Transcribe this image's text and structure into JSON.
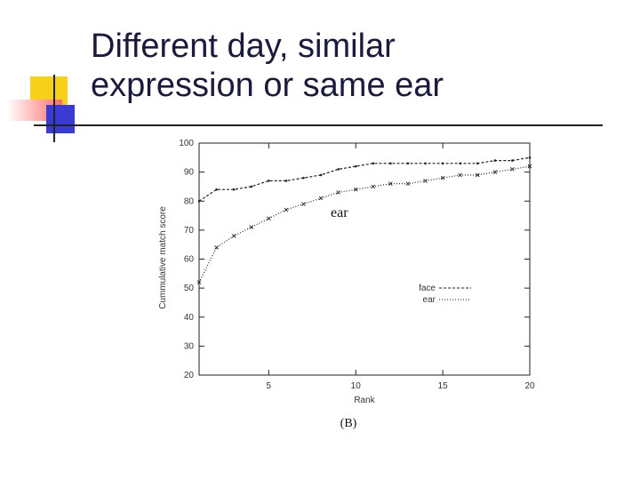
{
  "slide": {
    "title_lines": [
      "Different day, similar",
      "expression or same ear"
    ],
    "accent_colors": {
      "yellow": "#f7d117",
      "red": "#ff6b6b",
      "blue": "#3a3ad4",
      "line": "#222222"
    }
  },
  "chart_data": {
    "type": "line",
    "title": "",
    "xlabel": "Rank",
    "ylabel": "Cummulative match score",
    "xlim": [
      1,
      20
    ],
    "ylim": [
      20,
      100
    ],
    "xticks": [
      5,
      10,
      15,
      20
    ],
    "yticks": [
      20,
      30,
      40,
      50,
      60,
      70,
      80,
      90,
      100
    ],
    "grid": false,
    "legend_position": "lower-right",
    "annotation": "ear",
    "caption": "(B)",
    "series": [
      {
        "name": "face",
        "color": "#222222",
        "dash": "3,2",
        "x": [
          1,
          2,
          3,
          4,
          5,
          6,
          7,
          8,
          9,
          10,
          11,
          12,
          13,
          14,
          15,
          16,
          17,
          18,
          19,
          20
        ],
        "y": [
          80,
          84,
          84,
          85,
          87,
          87,
          88,
          89,
          91,
          92,
          93,
          93,
          93,
          93,
          93,
          93,
          93,
          94,
          94,
          95
        ]
      },
      {
        "name": "ear",
        "color": "#222222",
        "dash": "1,2",
        "x": [
          1,
          2,
          3,
          4,
          5,
          6,
          7,
          8,
          9,
          10,
          11,
          12,
          13,
          14,
          15,
          16,
          17,
          18,
          19,
          20
        ],
        "y": [
          52,
          64,
          68,
          71,
          74,
          77,
          79,
          81,
          83,
          84,
          85,
          86,
          86,
          87,
          88,
          89,
          89,
          90,
          91,
          92
        ]
      }
    ]
  }
}
